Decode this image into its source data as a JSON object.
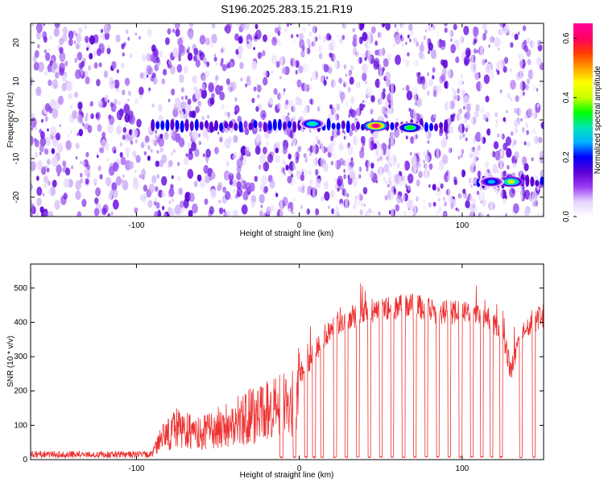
{
  "figure_title": "S196.2025.283.15.21.R19",
  "chart_data": [
    {
      "type": "heatmap",
      "title": "S196.2025.283.15.21.R19",
      "xlabel": "Height of straight line (km)",
      "ylabel": "Frequency (Hz)",
      "xlim": [
        -165,
        150
      ],
      "ylim": [
        -25,
        25
      ],
      "x_ticks": [
        -100,
        0,
        100
      ],
      "y_ticks": [
        -20,
        -10,
        0,
        10,
        20
      ],
      "colorbar": {
        "label": "Normalized spectral amplitude",
        "range": [
          0.0,
          0.65
        ],
        "ticks": [
          0.0,
          0.2,
          0.4,
          0.6
        ],
        "colors": [
          "#ffffff",
          "#e6d2ff",
          "#9a3cf0",
          "#5a00d6",
          "#0000ff",
          "#00b4ff",
          "#00e6b4",
          "#00ff00",
          "#c8ff00",
          "#ffff00",
          "#ffa000",
          "#ff3c00",
          "#ff0064",
          "#ff0096"
        ]
      },
      "features": [
        {
          "label": "carrier band",
          "x_range": [
            -90,
            90
          ],
          "freq_hz": -1.5
        },
        {
          "label": "peak",
          "x": 47,
          "freq_hz": -1.5,
          "amplitude": 0.65
        },
        {
          "label": "peak",
          "x": 68,
          "freq_hz": -2,
          "amplitude": 0.35
        },
        {
          "label": "peak",
          "x": 8,
          "freq_hz": -1,
          "amplitude": 0.3
        },
        {
          "label": "secondary band",
          "x_range": [
            110,
            150
          ],
          "freq_hz": -16
        },
        {
          "label": "peak",
          "x": 130,
          "freq_hz": -16,
          "amplitude": 0.4
        },
        {
          "label": "peak",
          "x": 118,
          "freq_hz": -16,
          "amplitude": 0.25
        }
      ]
    },
    {
      "type": "line",
      "xlabel": "Height of straight line (km)",
      "ylabel": "SNR (10 * v/v)",
      "xlim": [
        -165,
        150
      ],
      "ylim": [
        0,
        570
      ],
      "x_ticks": [
        -100,
        0,
        100
      ],
      "y_ticks": [
        0,
        100,
        200,
        300,
        400,
        500
      ],
      "color": "#ee3030",
      "envelope": {
        "x": [
          -165,
          -90,
          -85,
          -75,
          -60,
          -45,
          -30,
          -15,
          -5,
          0,
          10,
          20,
          35,
          50,
          70,
          85,
          100,
          115,
          125,
          130,
          138,
          150
        ],
        "y": [
          10,
          20,
          70,
          110,
          90,
          120,
          150,
          170,
          190,
          240,
          320,
          390,
          420,
          440,
          450,
          430,
          430,
          420,
          370,
          260,
          390,
          420
        ]
      },
      "dropouts_x": [
        -11,
        -3,
        4,
        9,
        14,
        22,
        29,
        36,
        43,
        50,
        57,
        64,
        71,
        78,
        85,
        92,
        99,
        106,
        112,
        118,
        124,
        136,
        144
      ]
    }
  ]
}
